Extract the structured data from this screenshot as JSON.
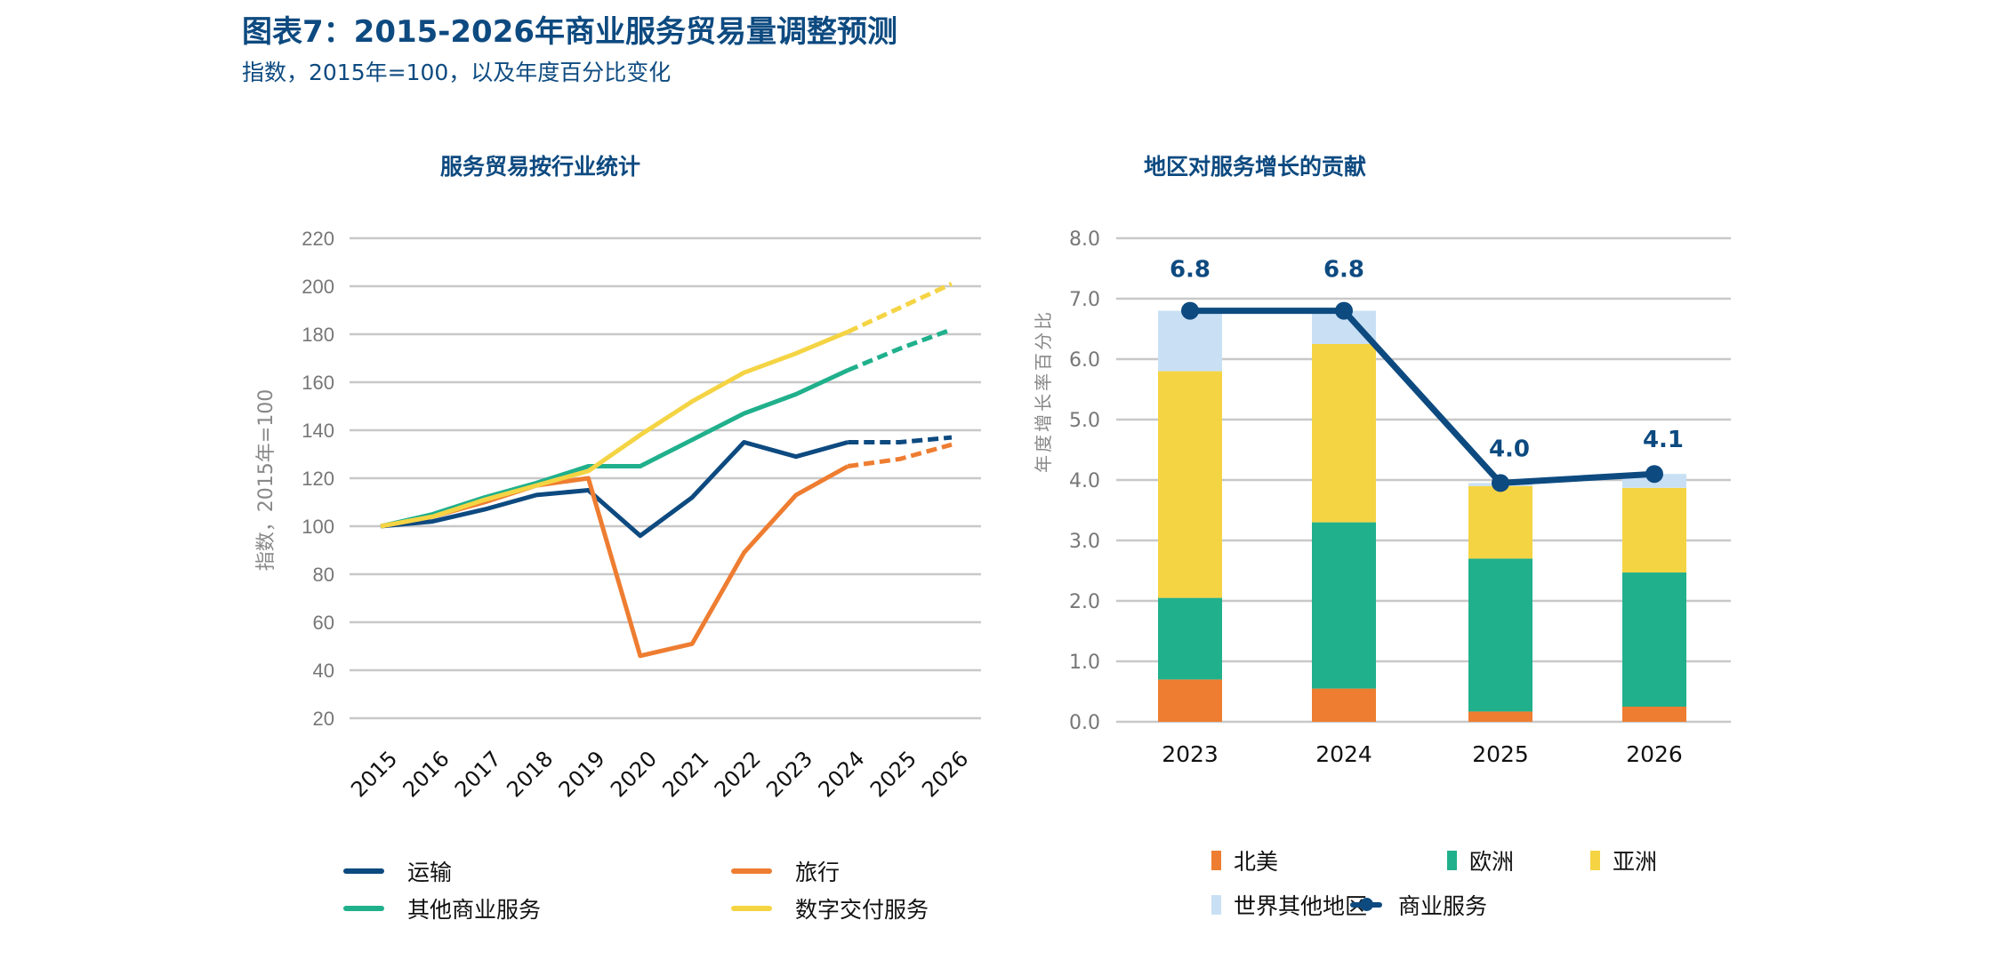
{
  "title": "图表7：2015-2026年商业服务贸易量调整预测",
  "subtitle": "指数，2015年=100，以及年度百分比变化",
  "chart_data": [
    {
      "type": "line",
      "title": "服务贸易按行业统计",
      "ylabel": "指数，2015年=100",
      "xlabel": "",
      "ylim": [
        20,
        220
      ],
      "yticks": [
        20,
        40,
        60,
        80,
        100,
        120,
        140,
        160,
        180,
        200,
        220
      ],
      "grid": true,
      "legend": "bottom",
      "x": [
        "2015",
        "2016",
        "2017",
        "2018",
        "2019",
        "2020",
        "2021",
        "2022",
        "2023",
        "2024",
        "2025",
        "2026"
      ],
      "projection_from": "2024",
      "series": [
        {
          "name": "运输",
          "color": "#0d4a80",
          "values": [
            100,
            102,
            107,
            113,
            115,
            96,
            112,
            135,
            129,
            135,
            135,
            137
          ]
        },
        {
          "name": "旅行",
          "color": "#ee7d31",
          "values": [
            100,
            104,
            110,
            117,
            120,
            46,
            51,
            89,
            113,
            125,
            128,
            134
          ]
        },
        {
          "name": "其他商业服务",
          "color": "#20b08c",
          "values": [
            100,
            105,
            112,
            118,
            125,
            125,
            136,
            147,
            155,
            165,
            174,
            182
          ]
        },
        {
          "name": "数字交付服务",
          "color": "#f5d444",
          "values": [
            100,
            104,
            111,
            117,
            123,
            138,
            152,
            164,
            172,
            181,
            191,
            201
          ]
        }
      ]
    },
    {
      "type": "bar",
      "stacked": true,
      "title": "地区对服务增长的贡献",
      "ylabel": "年度增长率百分比",
      "xlabel": "",
      "ylim": [
        0,
        8
      ],
      "yticks": [
        "0.0",
        "1.0",
        "2.0",
        "3.0",
        "4.0",
        "5.0",
        "6.0",
        "7.0",
        "8.0"
      ],
      "grid": true,
      "legend": "bottom",
      "categories": [
        "2023",
        "2024",
        "2025",
        "2026"
      ],
      "series": [
        {
          "name": "北美",
          "color": "#ee7d31",
          "values": [
            0.7,
            0.55,
            0.17,
            0.25
          ]
        },
        {
          "name": "欧洲",
          "color": "#20b08c",
          "values": [
            1.35,
            2.75,
            2.53,
            2.22
          ]
        },
        {
          "name": "亚洲",
          "color": "#f5d444",
          "values": [
            3.75,
            2.95,
            1.2,
            1.4
          ]
        },
        {
          "name": "世界其他地区",
          "color": "#c9e0f4",
          "values": [
            1.0,
            0.55,
            0.05,
            0.23
          ]
        }
      ],
      "line": {
        "name": "商业服务",
        "color": "#0d4a80",
        "values": [
          6.8,
          6.8,
          3.95,
          4.1
        ],
        "labels": [
          "6.8",
          "6.8",
          "4.0",
          "4.1"
        ]
      }
    }
  ]
}
